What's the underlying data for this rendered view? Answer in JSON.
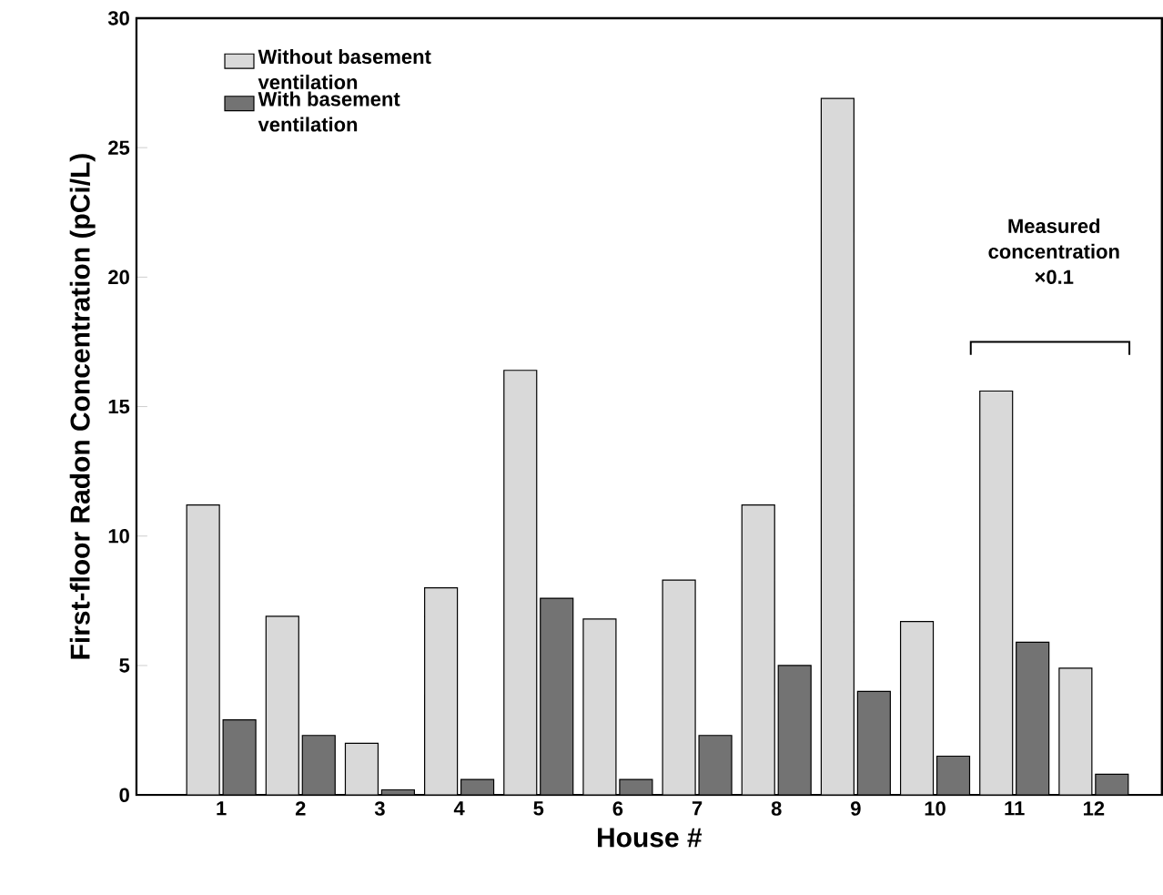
{
  "chart_data": {
    "type": "bar",
    "xlabel": "House #",
    "ylabel": "First-floor Radon Concentration (pCi/L)",
    "categories": [
      "1",
      "2",
      "3",
      "4",
      "5",
      "6",
      "7",
      "8",
      "9",
      "10",
      "11",
      "12"
    ],
    "series": [
      {
        "name": "Without basement ventilation",
        "color": "#d9d9d9",
        "values": [
          11.2,
          6.9,
          2.0,
          8.0,
          16.4,
          6.8,
          8.3,
          11.2,
          26.9,
          6.7,
          15.6,
          4.9
        ]
      },
      {
        "name": "With basement ventilation",
        "color": "#737373",
        "values": [
          2.9,
          2.3,
          0.2,
          0.6,
          7.6,
          0.6,
          2.3,
          5.0,
          4.0,
          1.5,
          5.9,
          0.8
        ]
      }
    ],
    "ylim": [
      0,
      30
    ],
    "yticks": [
      0,
      5,
      10,
      15,
      20,
      25,
      30
    ],
    "grid": false,
    "legend": "top left",
    "annotations": [
      "Measured concentration ×0.1"
    ]
  }
}
